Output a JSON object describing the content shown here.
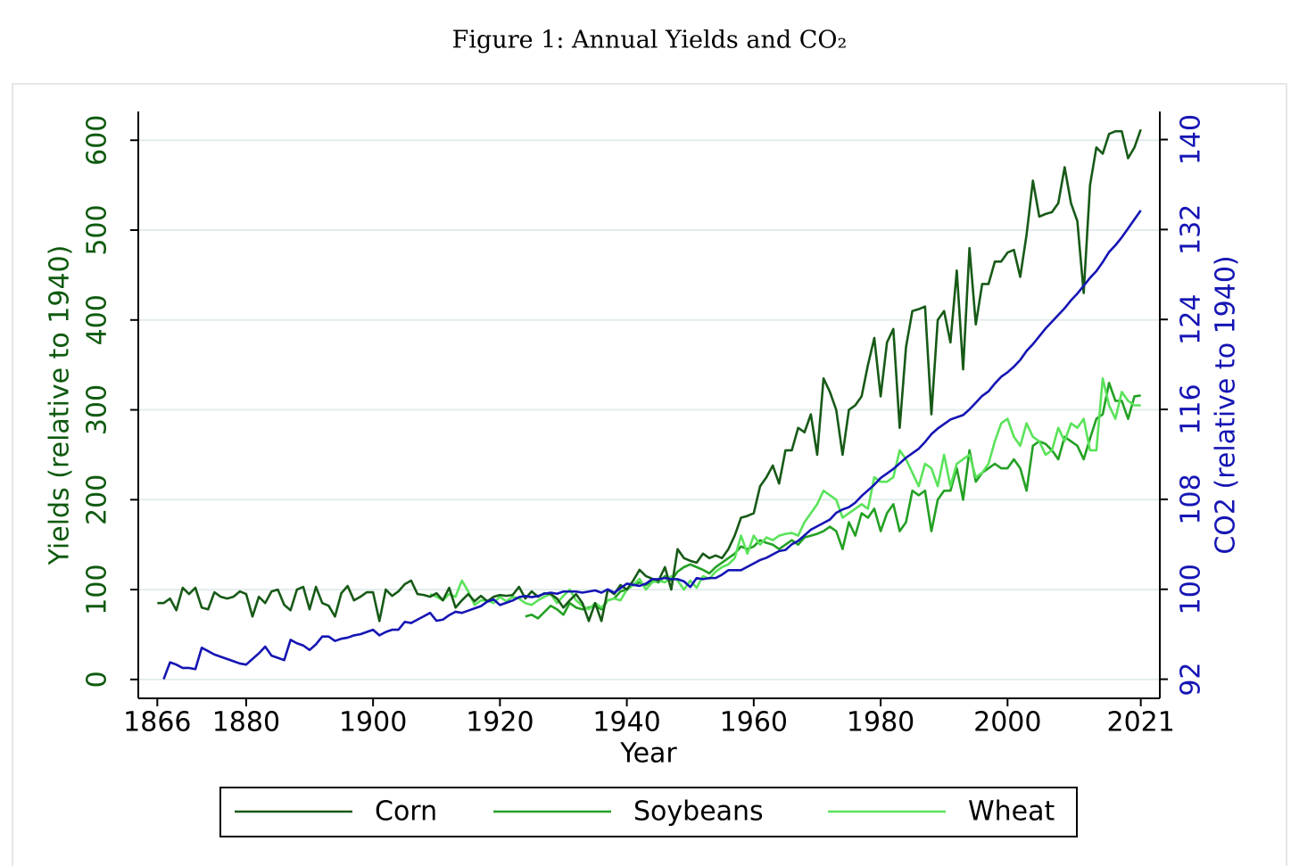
{
  "chart_data": {
    "type": "line",
    "title": "Figure 1: Annual Yields and CO₂",
    "xlabel": "Year",
    "ylabel": "Yields (relative to 1940)",
    "y2label": "CO2 (relative to 1940)",
    "x": [
      1866,
      1867,
      1868,
      1869,
      1870,
      1871,
      1872,
      1873,
      1874,
      1875,
      1876,
      1877,
      1878,
      1879,
      1880,
      1881,
      1882,
      1883,
      1884,
      1885,
      1886,
      1887,
      1888,
      1889,
      1890,
      1891,
      1892,
      1893,
      1894,
      1895,
      1896,
      1897,
      1898,
      1899,
      1900,
      1901,
      1902,
      1903,
      1904,
      1905,
      1906,
      1907,
      1908,
      1909,
      1910,
      1911,
      1912,
      1913,
      1914,
      1915,
      1916,
      1917,
      1918,
      1919,
      1920,
      1921,
      1922,
      1923,
      1924,
      1925,
      1926,
      1927,
      1928,
      1929,
      1930,
      1931,
      1932,
      1933,
      1934,
      1935,
      1936,
      1937,
      1938,
      1939,
      1940,
      1941,
      1942,
      1943,
      1944,
      1945,
      1946,
      1947,
      1948,
      1949,
      1950,
      1951,
      1952,
      1953,
      1954,
      1955,
      1956,
      1957,
      1958,
      1959,
      1960,
      1961,
      1962,
      1963,
      1964,
      1965,
      1966,
      1967,
      1968,
      1969,
      1970,
      1971,
      1972,
      1973,
      1974,
      1975,
      1976,
      1977,
      1978,
      1979,
      1980,
      1981,
      1982,
      1983,
      1984,
      1985,
      1986,
      1987,
      1988,
      1989,
      1990,
      1991,
      1992,
      1993,
      1994,
      1995,
      1996,
      1997,
      1998,
      1999,
      2000,
      2001,
      2002,
      2003,
      2004,
      2005,
      2006,
      2007,
      2008,
      2009,
      2010,
      2011,
      2012,
      2013,
      2014,
      2015,
      2016,
      2017,
      2018,
      2019,
      2020,
      2021
    ],
    "series": [
      {
        "name": "Soybeans",
        "color": "#23a023",
        "values": [
          null,
          null,
          null,
          null,
          null,
          null,
          null,
          null,
          null,
          null,
          null,
          null,
          null,
          null,
          null,
          null,
          null,
          null,
          null,
          null,
          null,
          null,
          null,
          null,
          null,
          null,
          null,
          null,
          null,
          null,
          null,
          null,
          null,
          null,
          null,
          null,
          null,
          null,
          null,
          null,
          null,
          null,
          null,
          null,
          null,
          null,
          null,
          null,
          null,
          null,
          null,
          null,
          null,
          null,
          null,
          null,
          null,
          null,
          70,
          72,
          68,
          75,
          82,
          78,
          72,
          85,
          80,
          78,
          80,
          82,
          78,
          88,
          90,
          98,
          100,
          105,
          108,
          105,
          110,
          108,
          115,
          110,
          120,
          125,
          128,
          125,
          122,
          118,
          125,
          130,
          135,
          140,
          148,
          145,
          148,
          155,
          152,
          150,
          145,
          150,
          155,
          150,
          158,
          160,
          162,
          165,
          170,
          165,
          145,
          175,
          160,
          185,
          180,
          190,
          165,
          185,
          195,
          165,
          175,
          210,
          205,
          210,
          165,
          200,
          210,
          210,
          235,
          200,
          255,
          220,
          230,
          235,
          240,
          235,
          235,
          245,
          235,
          210,
          260,
          265,
          262,
          255,
          245,
          270,
          265,
          260,
          245,
          268,
          290,
          295,
          330,
          310,
          310,
          290,
          315,
          316
        ]
      },
      {
        "name": "Wheat",
        "color": "#5ae35a",
        "values": [
          null,
          null,
          null,
          null,
          null,
          null,
          null,
          null,
          null,
          null,
          null,
          null,
          null,
          null,
          null,
          null,
          null,
          null,
          null,
          null,
          null,
          null,
          null,
          null,
          null,
          null,
          null,
          null,
          null,
          null,
          null,
          null,
          null,
          null,
          null,
          null,
          null,
          null,
          null,
          null,
          null,
          null,
          null,
          95,
          92,
          88,
          95,
          92,
          110,
          98,
          83,
          88,
          88,
          85,
          92,
          87,
          92,
          90,
          85,
          83,
          88,
          92,
          95,
          85,
          93,
          100,
          88,
          82,
          78,
          85,
          80,
          88,
          90,
          88,
          100,
          105,
          112,
          100,
          108,
          110,
          108,
          115,
          110,
          100,
          110,
          102,
          115,
          112,
          120,
          125,
          128,
          135,
          160,
          140,
          160,
          150,
          158,
          155,
          160,
          162,
          163,
          160,
          175,
          185,
          195,
          210,
          205,
          200,
          180,
          185,
          190,
          195,
          190,
          225,
          220,
          220,
          225,
          255,
          245,
          230,
          215,
          240,
          235,
          215,
          250,
          215,
          240,
          245,
          250,
          225,
          230,
          240,
          265,
          285,
          290,
          270,
          260,
          285,
          270,
          265,
          250,
          255,
          280,
          265,
          285,
          280,
          290,
          255,
          255,
          335,
          305,
          290,
          320,
          310,
          305,
          305
        ]
      },
      {
        "name": "Corn",
        "color": "#175a17",
        "values": [
          85,
          85,
          90,
          77,
          102,
          95,
          102,
          80,
          78,
          97,
          92,
          90,
          92,
          98,
          95,
          70,
          92,
          85,
          98,
          100,
          83,
          77,
          100,
          103,
          78,
          103,
          85,
          82,
          70,
          96,
          104,
          88,
          92,
          97,
          97,
          65,
          100,
          93,
          98,
          106,
          110,
          95,
          94,
          92,
          96,
          88,
          102,
          80,
          88,
          95,
          87,
          93,
          87,
          92,
          94,
          93,
          94,
          103,
          90,
          98,
          92,
          96,
          95,
          90,
          80,
          88,
          95,
          85,
          65,
          85,
          65,
          100,
          95,
          105,
          100,
          110,
          122,
          115,
          112,
          110,
          125,
          100,
          145,
          135,
          132,
          130,
          140,
          135,
          138,
          135,
          145,
          160,
          180,
          182,
          185,
          215,
          225,
          238,
          218,
          255,
          255,
          280,
          275,
          295,
          250,
          335,
          320,
          300,
          250,
          300,
          305,
          315,
          350,
          380,
          315,
          375,
          390,
          280,
          370,
          410,
          412,
          415,
          295,
          400,
          410,
          375,
          455,
          345,
          480,
          395,
          440,
          440,
          465,
          465,
          475,
          478,
          448,
          495,
          555,
          515,
          518,
          520,
          530,
          570,
          530,
          510,
          430,
          550,
          592,
          585,
          607,
          610,
          610,
          580,
          592,
          612
        ]
      },
      {
        "color": "#1515b4",
        "axis": "y2",
        "values": [
          null,
          92.0,
          93.5,
          93.3,
          93.0,
          93.0,
          92.9,
          94.8,
          94.5,
          94.2,
          94.0,
          93.8,
          93.6,
          93.4,
          93.3,
          93.8,
          94.3,
          94.9,
          94.1,
          93.9,
          93.7,
          95.5,
          95.2,
          95.0,
          94.6,
          95.1,
          95.8,
          95.8,
          95.4,
          95.6,
          95.7,
          95.9,
          96.0,
          96.2,
          96.4,
          95.9,
          96.2,
          96.4,
          96.4,
          97.1,
          97.0,
          97.3,
          97.6,
          97.9,
          97.2,
          97.3,
          97.7,
          98.0,
          97.9,
          98.1,
          98.3,
          98.5,
          98.9,
          99.1,
          98.6,
          98.8,
          99.0,
          99.3,
          99.4,
          99.3,
          99.4,
          99.6,
          99.7,
          99.6,
          99.8,
          99.8,
          99.8,
          99.7,
          99.8,
          99.9,
          99.7,
          100.0,
          99.7,
          100.1,
          100.5,
          100.4,
          100.3,
          100.5,
          100.9,
          100.9,
          101.0,
          100.9,
          100.9,
          100.7,
          100.2,
          101.0,
          100.9,
          101.0,
          101.0,
          101.3,
          101.7,
          101.7,
          101.7,
          102.0,
          102.3,
          102.6,
          102.8,
          103.1,
          103.4,
          103.5,
          104.0,
          104.3,
          104.8,
          105.3,
          105.6,
          105.9,
          106.2,
          106.8,
          107.1,
          107.3,
          107.7,
          108.3,
          108.8,
          109.3,
          109.9,
          110.3,
          110.7,
          111.2,
          111.7,
          112.1,
          112.5,
          113.1,
          113.8,
          114.3,
          114.7,
          115.1,
          115.3,
          115.5,
          116.0,
          116.6,
          117.2,
          117.6,
          118.3,
          118.9,
          119.3,
          119.8,
          120.4,
          121.2,
          121.8,
          122.5,
          123.2,
          123.8,
          124.4,
          125.0,
          125.7,
          126.3,
          127.0,
          127.7,
          128.3,
          129.1,
          130.0,
          130.6,
          131.3,
          132.1,
          132.9,
          133.7
        ]
      }
    ],
    "xlim": [
      1863,
      2024
    ],
    "xticks": [
      1866,
      1880,
      1900,
      1920,
      1940,
      1960,
      1980,
      2000,
      2021
    ],
    "ylim": [
      -21,
      632
    ],
    "yticks": [
      0,
      100,
      200,
      300,
      400,
      500,
      600
    ],
    "y2lim": [
      90.3,
      142.5
    ],
    "y2ticks": [
      92,
      100,
      108,
      116,
      124,
      132,
      140
    ],
    "ycolor": "#0f5a0f",
    "y2color": "#1515b4",
    "grid": true,
    "legend": "bottom"
  }
}
